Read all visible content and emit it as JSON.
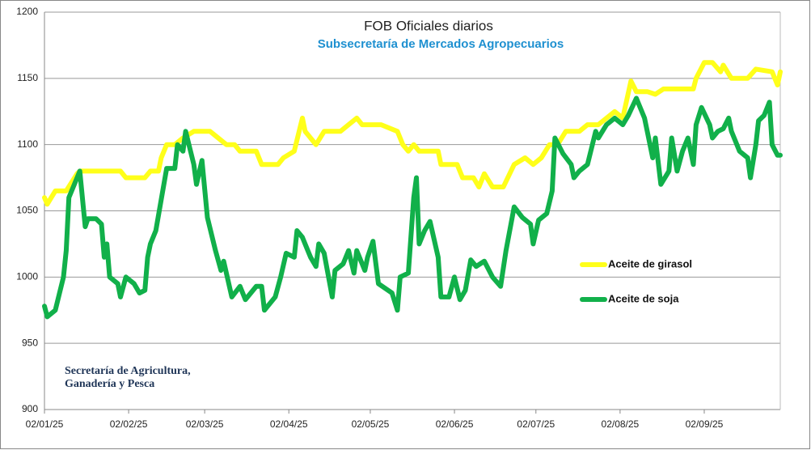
{
  "chart_data": {
    "type": "line",
    "title": "FOB Oficiales diarios",
    "subtitle": "Subsecretaría de Mercados Agropecuarios",
    "annotation": [
      "Secretaría de Agricultura,",
      "Ganadería y Pesca"
    ],
    "legend": "right",
    "grid": true,
    "xlim": [
      "2025-01-02",
      "2025-09-30"
    ],
    "xticks": [
      {
        "value": "2025-01-02",
        "label": "02/01/25"
      },
      {
        "value": "2025-02-02",
        "label": "02/02/25"
      },
      {
        "value": "2025-03-02",
        "label": "02/03/25"
      },
      {
        "value": "2025-04-02",
        "label": "02/04/25"
      },
      {
        "value": "2025-05-02",
        "label": "02/05/25"
      },
      {
        "value": "2025-06-02",
        "label": "02/06/25"
      },
      {
        "value": "2025-07-02",
        "label": "02/07/25"
      },
      {
        "value": "2025-08-02",
        "label": "02/08/25"
      },
      {
        "value": "2025-09-02",
        "label": "02/09/25"
      }
    ],
    "ylim": [
      900,
      1200
    ],
    "yticks": [
      900,
      950,
      1000,
      1050,
      1100,
      1150,
      1200
    ],
    "series": [
      {
        "name": "Aceite de girasol",
        "color": "#ffff1a",
        "x": [
          "2025-01-02",
          "2025-01-03",
          "2025-01-06",
          "2025-01-10",
          "2025-01-14",
          "2025-01-15",
          "2025-01-30",
          "2025-02-01",
          "2025-02-08",
          "2025-02-10",
          "2025-02-13",
          "2025-02-14",
          "2025-02-16",
          "2025-02-19",
          "2025-02-22",
          "2025-02-26",
          "2025-03-04",
          "2025-03-07",
          "2025-03-10",
          "2025-03-13",
          "2025-03-15",
          "2025-03-21",
          "2025-03-23",
          "2025-03-29",
          "2025-03-31",
          "2025-04-04",
          "2025-04-07",
          "2025-04-08",
          "2025-04-12",
          "2025-04-15",
          "2025-04-21",
          "2025-04-24",
          "2025-04-27",
          "2025-04-29",
          "2025-05-06",
          "2025-05-12",
          "2025-05-14",
          "2025-05-16",
          "2025-05-18",
          "2025-05-20",
          "2025-05-27",
          "2025-05-28",
          "2025-06-03",
          "2025-06-05",
          "2025-06-09",
          "2025-06-11",
          "2025-06-13",
          "2025-06-16",
          "2025-06-20",
          "2025-06-24",
          "2025-06-28",
          "2025-07-01",
          "2025-07-04",
          "2025-07-07",
          "2025-07-10",
          "2025-07-13",
          "2025-07-18",
          "2025-07-21",
          "2025-07-25",
          "2025-07-28",
          "2025-07-31",
          "2025-08-03",
          "2025-08-06",
          "2025-08-08",
          "2025-08-12",
          "2025-08-15",
          "2025-08-18",
          "2025-08-29",
          "2025-08-30",
          "2025-09-02",
          "2025-09-05",
          "2025-09-08",
          "2025-09-09",
          "2025-09-12",
          "2025-09-18",
          "2025-09-21",
          "2025-09-27",
          "2025-09-29",
          "2025-09-30"
        ],
        "values": [
          1060,
          1055,
          1065,
          1065,
          1078,
          1080,
          1080,
          1075,
          1075,
          1080,
          1080,
          1090,
          1100,
          1100,
          1105,
          1110,
          1110,
          1105,
          1100,
          1100,
          1095,
          1095,
          1085,
          1085,
          1090,
          1095,
          1120,
          1110,
          1100,
          1110,
          1110,
          1115,
          1120,
          1115,
          1115,
          1110,
          1100,
          1095,
          1100,
          1095,
          1095,
          1085,
          1085,
          1075,
          1075,
          1068,
          1078,
          1068,
          1068,
          1085,
          1090,
          1085,
          1090,
          1100,
          1100,
          1110,
          1110,
          1115,
          1115,
          1120,
          1125,
          1120,
          1148,
          1140,
          1140,
          1138,
          1142,
          1142,
          1150,
          1162,
          1162,
          1155,
          1160,
          1150,
          1150,
          1157,
          1155,
          1145,
          1155
        ]
      },
      {
        "name": "Aceite de soja",
        "color": "#11b04a",
        "x": [
          "2025-01-02",
          "2025-01-03",
          "2025-01-06",
          "2025-01-09",
          "2025-01-10",
          "2025-01-11",
          "2025-01-14",
          "2025-01-15",
          "2025-01-17",
          "2025-01-18",
          "2025-01-21",
          "2025-01-23",
          "2025-01-24",
          "2025-01-25",
          "2025-01-26",
          "2025-01-29",
          "2025-01-30",
          "2025-02-01",
          "2025-02-04",
          "2025-02-06",
          "2025-02-08",
          "2025-02-09",
          "2025-02-10",
          "2025-02-12",
          "2025-02-16",
          "2025-02-19",
          "2025-02-20",
          "2025-02-22",
          "2025-02-23",
          "2025-02-26",
          "2025-02-27",
          "2025-03-01",
          "2025-03-03",
          "2025-03-06",
          "2025-03-08",
          "2025-03-09",
          "2025-03-12",
          "2025-03-15",
          "2025-03-17",
          "2025-03-21",
          "2025-03-23",
          "2025-03-24",
          "2025-03-28",
          "2025-03-30",
          "2025-04-01",
          "2025-04-04",
          "2025-04-05",
          "2025-04-07",
          "2025-04-09",
          "2025-04-10",
          "2025-04-12",
          "2025-04-13",
          "2025-04-15",
          "2025-04-18",
          "2025-04-19",
          "2025-04-22",
          "2025-04-24",
          "2025-04-26",
          "2025-04-27",
          "2025-04-30",
          "2025-05-01",
          "2025-05-03",
          "2025-05-05",
          "2025-05-10",
          "2025-05-12",
          "2025-05-13",
          "2025-05-16",
          "2025-05-18",
          "2025-05-19",
          "2025-05-20",
          "2025-05-22",
          "2025-05-24",
          "2025-05-27",
          "2025-05-28",
          "2025-05-31",
          "2025-06-02",
          "2025-06-04",
          "2025-06-06",
          "2025-06-08",
          "2025-06-10",
          "2025-06-13",
          "2025-06-16",
          "2025-06-19",
          "2025-06-21",
          "2025-06-24",
          "2025-06-27",
          "2025-06-30",
          "2025-07-01",
          "2025-07-03",
          "2025-07-06",
          "2025-07-08",
          "2025-07-09",
          "2025-07-12",
          "2025-07-15",
          "2025-07-16",
          "2025-07-18",
          "2025-07-21",
          "2025-07-24",
          "2025-07-25",
          "2025-07-28",
          "2025-07-31",
          "2025-08-03",
          "2025-08-05",
          "2025-08-08",
          "2025-08-11",
          "2025-08-12",
          "2025-08-14",
          "2025-08-15",
          "2025-08-17",
          "2025-08-20",
          "2025-08-21",
          "2025-08-23",
          "2025-08-25",
          "2025-08-27",
          "2025-08-29",
          "2025-08-30",
          "2025-09-01",
          "2025-09-04",
          "2025-09-05",
          "2025-09-07",
          "2025-09-09",
          "2025-09-11",
          "2025-09-12",
          "2025-09-15",
          "2025-09-18",
          "2025-09-19",
          "2025-09-21",
          "2025-09-22",
          "2025-09-24",
          "2025-09-26",
          "2025-09-27",
          "2025-09-29",
          "2025-09-30"
        ],
        "values": [
          978,
          970,
          975,
          1000,
          1020,
          1060,
          1075,
          1080,
          1038,
          1044,
          1044,
          1040,
          1015,
          1025,
          1000,
          995,
          985,
          1000,
          995,
          988,
          990,
          1015,
          1025,
          1035,
          1082,
          1082,
          1100,
          1095,
          1110,
          1085,
          1070,
          1088,
          1045,
          1020,
          1005,
          1012,
          985,
          993,
          983,
          993,
          993,
          975,
          985,
          1000,
          1018,
          1015,
          1035,
          1030,
          1020,
          1015,
          1008,
          1025,
          1018,
          985,
          1005,
          1010,
          1020,
          1003,
          1020,
          1005,
          1015,
          1027,
          995,
          988,
          975,
          1000,
          1003,
          1060,
          1075,
          1025,
          1035,
          1042,
          1015,
          985,
          985,
          1000,
          983,
          990,
          1013,
          1008,
          1012,
          1000,
          993,
          1020,
          1053,
          1045,
          1040,
          1025,
          1043,
          1048,
          1065,
          1105,
          1093,
          1085,
          1075,
          1080,
          1085,
          1110,
          1105,
          1115,
          1120,
          1115,
          1122,
          1135,
          1120,
          1110,
          1090,
          1105,
          1070,
          1080,
          1105,
          1080,
          1095,
          1105,
          1085,
          1115,
          1128,
          1115,
          1105,
          1110,
          1112,
          1120,
          1110,
          1095,
          1090,
          1075,
          1100,
          1118,
          1122,
          1132,
          1100,
          1092,
          1092
        ]
      }
    ]
  }
}
